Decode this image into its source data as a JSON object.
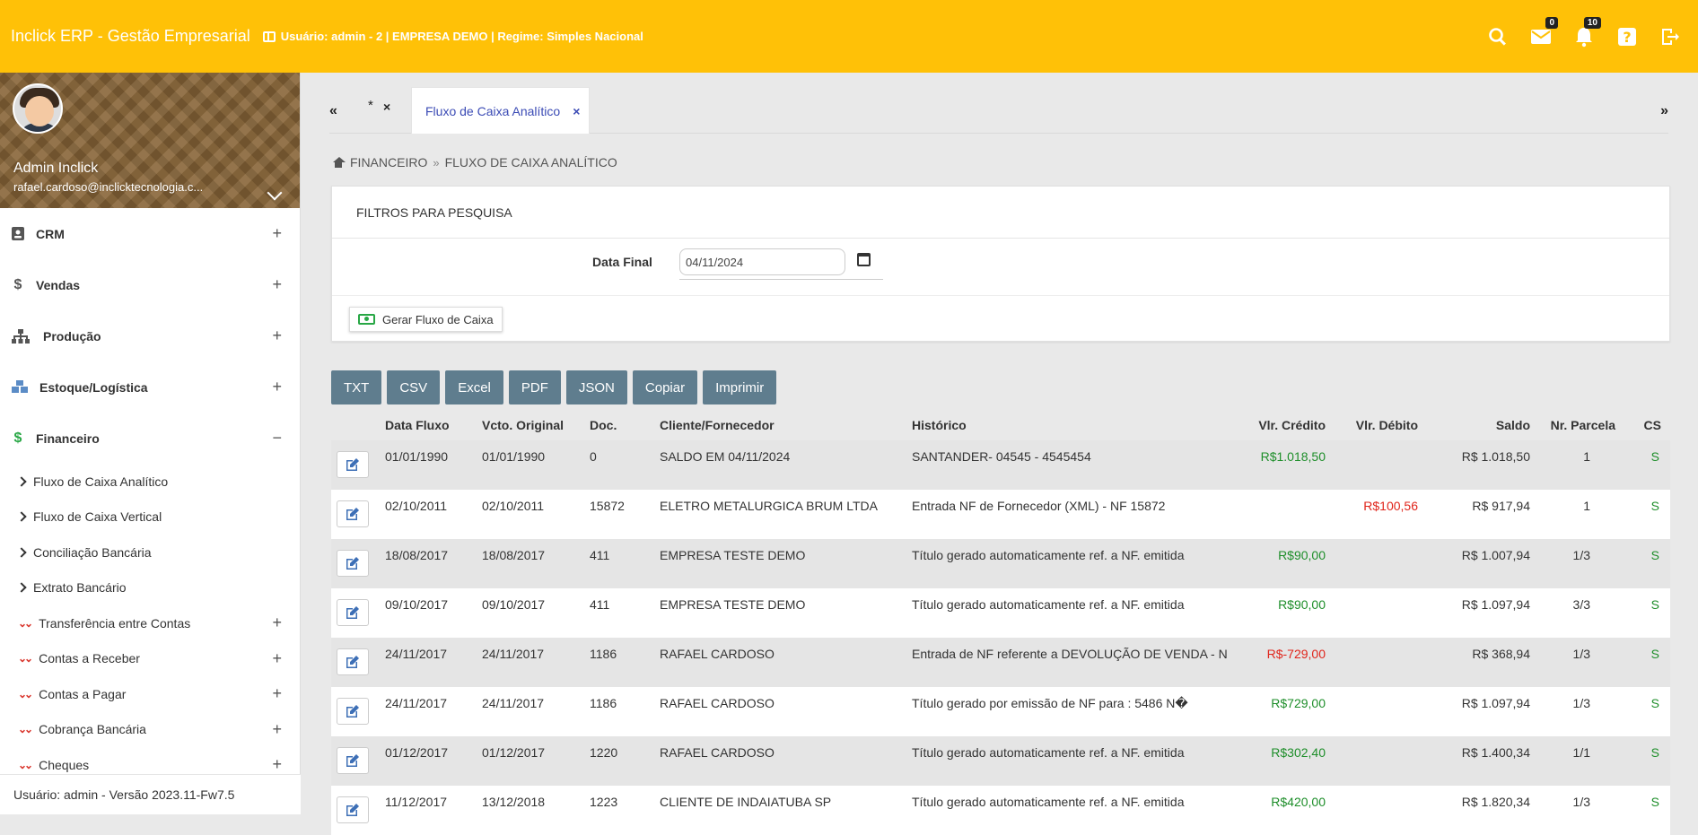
{
  "header": {
    "brand": "Inclick ERP - Gestão Empresarial",
    "user_info": "Usuário: admin - 2 | EMPRESA DEMO | Regime: Simples Nacional",
    "mail_count": "0",
    "notif_count": "10"
  },
  "profile": {
    "name": "Admin Inclick",
    "email": "rafael.cardoso@inclicktecnologia.c..."
  },
  "menu": {
    "crm": "CRM",
    "vendas": "Vendas",
    "producao": "Produção",
    "estoque": "Estoque/Logística",
    "financeiro": "Financeiro",
    "sub": [
      "Fluxo de Caixa Analítico",
      "Fluxo de Caixa Vertical",
      "Conciliação Bancária",
      "Extrato Bancário",
      "Transferência entre Contas",
      "Contas a Receber",
      "Contas a Pagar",
      "Cobrança Bancária",
      "Cheques"
    ]
  },
  "footer": "Usuário: admin - Versão 2023.11-Fw7.5",
  "tabs": {
    "prev": "«",
    "next": "»",
    "star": "*",
    "close": "×",
    "active_label": "Fluxo de Caixa Analítico"
  },
  "breadcrumb": {
    "root": "FINANCEIRO",
    "sep": "»",
    "current": "FLUXO DE CAIXA ANALÍTICO"
  },
  "filters": {
    "title": "FILTROS PARA PESQUISA",
    "date_label": "Data Final",
    "date_value": "04/11/2024",
    "generate_button": "Gerar Fluxo de Caixa"
  },
  "export_buttons": [
    "TXT",
    "CSV",
    "Excel",
    "PDF",
    "JSON",
    "Copiar",
    "Imprimir"
  ],
  "table": {
    "headers": {
      "data_fluxo": "Data Fluxo",
      "vcto": "Vcto. Original",
      "doc": "Doc.",
      "cliente": "Cliente/Fornecedor",
      "historico": "Histórico",
      "credito": "Vlr. Crédito",
      "debito": "Vlr. Débito",
      "saldo": "Saldo",
      "parcela": "Nr. Parcela",
      "cs": "CS"
    },
    "rows": [
      {
        "data": "01/01/1990",
        "vcto": "01/01/1990",
        "doc": "0",
        "cliente": "SALDO EM 04/11/2024",
        "historico": "SANTANDER- 04545 - 4545454",
        "credito": "R$1.018,50",
        "credito_color": "#1e8e2a",
        "debito": "",
        "saldo": "R$ 1.018,50",
        "parcela": "1",
        "cs": "S"
      },
      {
        "data": "02/10/2011",
        "vcto": "02/10/2011",
        "doc": "15872",
        "cliente": "ELETRO METALURGICA BRUM LTDA",
        "historico": "Entrada NF de Fornecedor (XML) - NF 15872",
        "credito": "",
        "credito_color": "#1e8e2a",
        "debito": "R$100,56",
        "saldo": "R$ 917,94",
        "parcela": "1",
        "cs": "S"
      },
      {
        "data": "18/08/2017",
        "vcto": "18/08/2017",
        "doc": "411",
        "cliente": "EMPRESA TESTE DEMO",
        "historico": "Título gerado automaticamente ref. a NF. emitida",
        "credito": "R$90,00",
        "credito_color": "#1e8e2a",
        "debito": "",
        "saldo": "R$ 1.007,94",
        "parcela": "1/3",
        "cs": "S"
      },
      {
        "data": "09/10/2017",
        "vcto": "09/10/2017",
        "doc": "411",
        "cliente": "EMPRESA TESTE DEMO",
        "historico": "Título gerado automaticamente ref. a NF. emitida",
        "credito": "R$90,00",
        "credito_color": "#1e8e2a",
        "debito": "",
        "saldo": "R$ 1.097,94",
        "parcela": "3/3",
        "cs": "S"
      },
      {
        "data": "24/11/2017",
        "vcto": "24/11/2017",
        "doc": "1186",
        "cliente": "RAFAEL CARDOSO",
        "historico": "Entrada de NF referente a DEVOLUÇÃO DE VENDA - N",
        "credito": "R$-729,00",
        "credito_color": "#e0251b",
        "debito": "",
        "saldo": "R$ 368,94",
        "parcela": "1/3",
        "cs": "S"
      },
      {
        "data": "24/11/2017",
        "vcto": "24/11/2017",
        "doc": "1186",
        "cliente": "RAFAEL CARDOSO",
        "historico": "Título gerado por emissão de NF para : 5486 N�",
        "credito": "R$729,00",
        "credito_color": "#1e8e2a",
        "debito": "",
        "saldo": "R$ 1.097,94",
        "parcela": "1/3",
        "cs": "S"
      },
      {
        "data": "01/12/2017",
        "vcto": "01/12/2017",
        "doc": "1220",
        "cliente": "RAFAEL CARDOSO",
        "historico": "Título gerado automaticamente ref. a NF. emitida",
        "credito": "R$302,40",
        "credito_color": "#1e8e2a",
        "debito": "",
        "saldo": "R$ 1.400,34",
        "parcela": "1/1",
        "cs": "S"
      },
      {
        "data": "11/12/2017",
        "vcto": "13/12/2018",
        "doc": "1223",
        "cliente": "CLIENTE DE INDAIATUBA SP",
        "historico": "Título gerado automaticamente ref. a NF. emitida",
        "credito": "R$420,00",
        "credito_color": "#1e8e2a",
        "debito": "",
        "saldo": "R$ 1.820,34",
        "parcela": "1/3",
        "cs": "S"
      }
    ]
  }
}
